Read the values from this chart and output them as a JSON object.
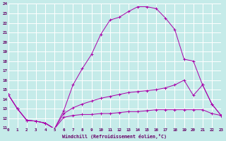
{
  "xlabel": "Windchill (Refroidissement éolien,°C)",
  "background_color": "#c5ebe9",
  "grid_color": "#ffffff",
  "line_color": "#aa00aa",
  "xmin": 0,
  "xmax": 23,
  "ymin": 11,
  "ymax": 24,
  "line1_x": [
    0,
    1,
    2,
    3,
    4,
    5,
    6,
    7,
    8,
    9,
    10,
    11,
    12,
    13,
    14,
    15,
    16,
    17,
    18,
    19,
    20,
    21,
    22,
    23
  ],
  "line1_y": [
    14.5,
    13.0,
    11.8,
    11.7,
    11.5,
    10.9,
    12.1,
    12.3,
    12.4,
    12.4,
    12.5,
    12.5,
    12.6,
    12.7,
    12.7,
    12.8,
    12.9,
    12.9,
    12.9,
    12.9,
    12.9,
    12.9,
    12.5,
    12.3
  ],
  "line2_x": [
    0,
    1,
    2,
    3,
    4,
    5,
    6,
    7,
    8,
    9,
    10,
    11,
    12,
    13,
    14,
    15,
    16,
    17,
    18,
    19,
    20,
    21,
    22,
    23
  ],
  "line2_y": [
    14.5,
    13.0,
    11.8,
    11.7,
    11.5,
    10.9,
    12.8,
    15.5,
    17.2,
    18.7,
    20.8,
    22.3,
    22.6,
    23.2,
    23.7,
    23.7,
    23.5,
    22.5,
    21.3,
    18.2,
    18.0,
    15.5,
    13.5,
    12.3
  ],
  "line3_x": [
    0,
    1,
    2,
    3,
    4,
    5,
    6,
    7,
    8,
    9,
    10,
    11,
    12,
    13,
    14,
    15,
    16,
    17,
    18,
    19,
    20,
    21,
    22,
    23
  ],
  "line3_y": [
    14.5,
    13.0,
    11.8,
    11.7,
    11.5,
    10.9,
    12.5,
    13.1,
    13.5,
    13.8,
    14.1,
    14.3,
    14.5,
    14.7,
    14.8,
    14.9,
    15.0,
    15.2,
    15.5,
    16.0,
    14.4,
    15.5,
    13.5,
    12.3
  ],
  "xtick_labels": [
    "0",
    "1",
    "2",
    "3",
    "4",
    "5",
    "6",
    "7",
    "8",
    "9",
    "10",
    "11",
    "12",
    "13",
    "14",
    "15",
    "16",
    "17",
    "18",
    "19",
    "20",
    "21",
    "22",
    "23"
  ],
  "ytick_labels": [
    "11",
    "12",
    "13",
    "14",
    "15",
    "16",
    "17",
    "18",
    "19",
    "20",
    "21",
    "22",
    "23",
    "24"
  ]
}
